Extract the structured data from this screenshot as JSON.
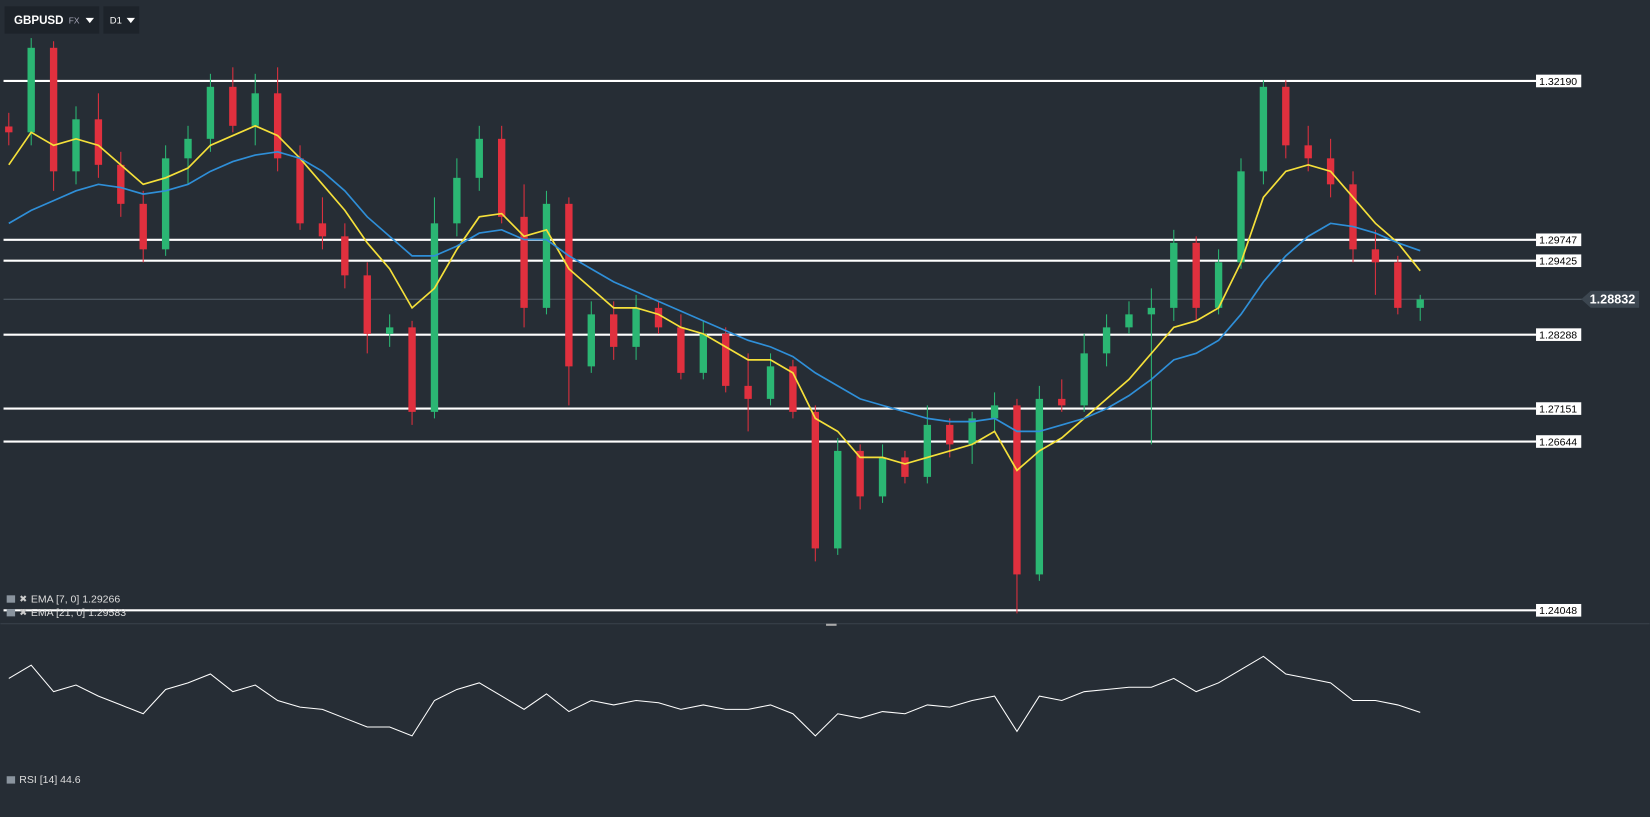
{
  "toolbar": {
    "symbol": "GBPUSD",
    "market": "FX",
    "timeframe": "D1"
  },
  "chart_data": [
    {
      "type": "candlestick",
      "open": [
        1.3149,
        1.314,
        1.327,
        1.308,
        1.316,
        1.309,
        1.303,
        1.296,
        1.31,
        1.313,
        1.321,
        1.315,
        1.32,
        1.31,
        1.3,
        1.298,
        1.292,
        1.283,
        1.284,
        1.271,
        1.3,
        1.307,
        1.313,
        1.301,
        1.287,
        1.303,
        1.278,
        1.286,
        1.281,
        1.287,
        1.284,
        1.277,
        1.283,
        1.275,
        1.273,
        1.278,
        1.271,
        1.25,
        1.265,
        1.258,
        1.264,
        1.261,
        1.269,
        1.266,
        1.27,
        1.272,
        1.246,
        1.273,
        1.272,
        1.28,
        1.284,
        1.286,
        1.287,
        1.297,
        1.287,
        1.294,
        1.308,
        1.321,
        1.312,
        1.31,
        1.306,
        1.296,
        1.294,
        1.287
      ],
      "high": [
        1.317,
        1.3285,
        1.328,
        1.318,
        1.32,
        1.311,
        1.305,
        1.312,
        1.315,
        1.323,
        1.324,
        1.323,
        1.324,
        1.312,
        1.304,
        1.3,
        1.294,
        1.286,
        1.285,
        1.304,
        1.31,
        1.315,
        1.315,
        1.306,
        1.305,
        1.304,
        1.288,
        1.288,
        1.289,
        1.288,
        1.286,
        1.285,
        1.284,
        1.28,
        1.28,
        1.279,
        1.272,
        1.267,
        1.266,
        1.266,
        1.265,
        1.272,
        1.27,
        1.271,
        1.274,
        1.273,
        1.275,
        1.276,
        1.283,
        1.286,
        1.288,
        1.29,
        1.299,
        1.298,
        1.296,
        1.31,
        1.322,
        1.322,
        1.315,
        1.313,
        1.308,
        1.299,
        1.295,
        1.289
      ],
      "low": [
        1.312,
        1.312,
        1.305,
        1.306,
        1.307,
        1.301,
        1.294,
        1.295,
        1.306,
        1.311,
        1.314,
        1.312,
        1.308,
        1.299,
        1.296,
        1.29,
        1.28,
        1.281,
        1.269,
        1.27,
        1.298,
        1.305,
        1.3,
        1.284,
        1.286,
        1.272,
        1.277,
        1.279,
        1.279,
        1.283,
        1.276,
        1.276,
        1.274,
        1.268,
        1.272,
        1.27,
        1.248,
        1.249,
        1.256,
        1.257,
        1.26,
        1.26,
        1.264,
        1.263,
        1.268,
        1.24,
        1.245,
        1.271,
        1.271,
        1.278,
        1.283,
        1.266,
        1.285,
        1.285,
        1.286,
        1.293,
        1.306,
        1.31,
        1.308,
        1.304,
        1.294,
        1.289,
        1.286,
        1.285
      ],
      "close": [
        1.314,
        1.327,
        1.308,
        1.316,
        1.309,
        1.303,
        1.296,
        1.31,
        1.313,
        1.321,
        1.315,
        1.32,
        1.31,
        1.3,
        1.298,
        1.292,
        1.283,
        1.284,
        1.271,
        1.3,
        1.307,
        1.313,
        1.301,
        1.287,
        1.303,
        1.278,
        1.286,
        1.281,
        1.287,
        1.284,
        1.277,
        1.283,
        1.275,
        1.273,
        1.278,
        1.271,
        1.25,
        1.265,
        1.258,
        1.264,
        1.261,
        1.269,
        1.266,
        1.27,
        1.272,
        1.246,
        1.273,
        1.272,
        1.28,
        1.284,
        1.286,
        1.287,
        1.297,
        1.287,
        1.294,
        1.308,
        1.321,
        1.312,
        1.31,
        1.306,
        1.296,
        1.294,
        1.287,
        1.2883
      ],
      "up_color": "#2bb673",
      "down_color": "#e0303e",
      "series": [
        {
          "name": "EMA  [7, 0]  1.29266",
          "color": "#f5e03a",
          "values": [
            1.309,
            1.314,
            1.312,
            1.313,
            1.312,
            1.309,
            1.306,
            1.307,
            1.3085,
            1.312,
            1.3135,
            1.315,
            1.3135,
            1.31,
            1.306,
            1.302,
            1.297,
            1.293,
            1.287,
            1.29,
            1.296,
            1.301,
            1.3015,
            1.298,
            1.299,
            1.293,
            1.29,
            1.287,
            1.287,
            1.286,
            1.284,
            1.283,
            1.281,
            1.279,
            1.279,
            1.277,
            1.27,
            1.268,
            1.264,
            1.264,
            1.263,
            1.264,
            1.265,
            1.266,
            1.268,
            1.262,
            1.265,
            1.267,
            1.27,
            1.273,
            1.276,
            1.28,
            1.284,
            1.285,
            1.287,
            1.294,
            1.304,
            1.308,
            1.309,
            1.308,
            1.304,
            1.3,
            1.297,
            1.2927
          ]
        },
        {
          "name": "EMA  [21, 0]  1.29583",
          "color": "#2f8fd8",
          "values": [
            1.3,
            1.302,
            1.3035,
            1.305,
            1.306,
            1.3055,
            1.3045,
            1.305,
            1.306,
            1.308,
            1.3095,
            1.3105,
            1.311,
            1.31,
            1.308,
            1.305,
            1.301,
            1.298,
            1.295,
            1.295,
            1.2965,
            1.2985,
            1.299,
            1.2975,
            1.2975,
            1.295,
            1.293,
            1.291,
            1.2895,
            1.288,
            1.2865,
            1.285,
            1.2835,
            1.282,
            1.281,
            1.2795,
            1.277,
            1.275,
            1.273,
            1.272,
            1.271,
            1.27,
            1.2695,
            1.2695,
            1.27,
            1.268,
            1.268,
            1.269,
            1.27,
            1.2715,
            1.2735,
            1.276,
            1.279,
            1.28,
            1.282,
            1.286,
            1.291,
            1.295,
            1.298,
            1.3,
            1.2995,
            1.2985,
            1.297,
            1.2958
          ]
        }
      ],
      "levels": [
        {
          "value": 1.3219,
          "label": "1.32190"
        },
        {
          "value": 1.29747,
          "label": "1.29747"
        },
        {
          "value": 1.29425,
          "label": "1.29425"
        },
        {
          "value": 1.28288,
          "label": "1.28288"
        },
        {
          "value": 1.27151,
          "label": "1.27151"
        },
        {
          "value": 1.26644,
          "label": "1.26644"
        },
        {
          "value": 1.24048,
          "label": "1.24048"
        }
      ],
      "last_price": 1.28832,
      "ylim": [
        1.2389,
        1.3295
      ]
    },
    {
      "type": "line",
      "series": [
        {
          "name": "RSI  [14]  44.6",
          "color": "#ffffff",
          "values": [
            60,
            66,
            54,
            57,
            52,
            48,
            44,
            55,
            58,
            62,
            54,
            57,
            50,
            47,
            46,
            42,
            38,
            38,
            34,
            50,
            55,
            58,
            52,
            46,
            53,
            45,
            50,
            48,
            50,
            49,
            46,
            48,
            46,
            46,
            48,
            44,
            34,
            44,
            42,
            45,
            44,
            48,
            47,
            50,
            52,
            36,
            52,
            50,
            54,
            55,
            56,
            56,
            60,
            54,
            58,
            64,
            70,
            62,
            60,
            58,
            50,
            50,
            48,
            44.6
          ]
        }
      ],
      "ylim": [
        20,
        80
      ]
    }
  ]
}
